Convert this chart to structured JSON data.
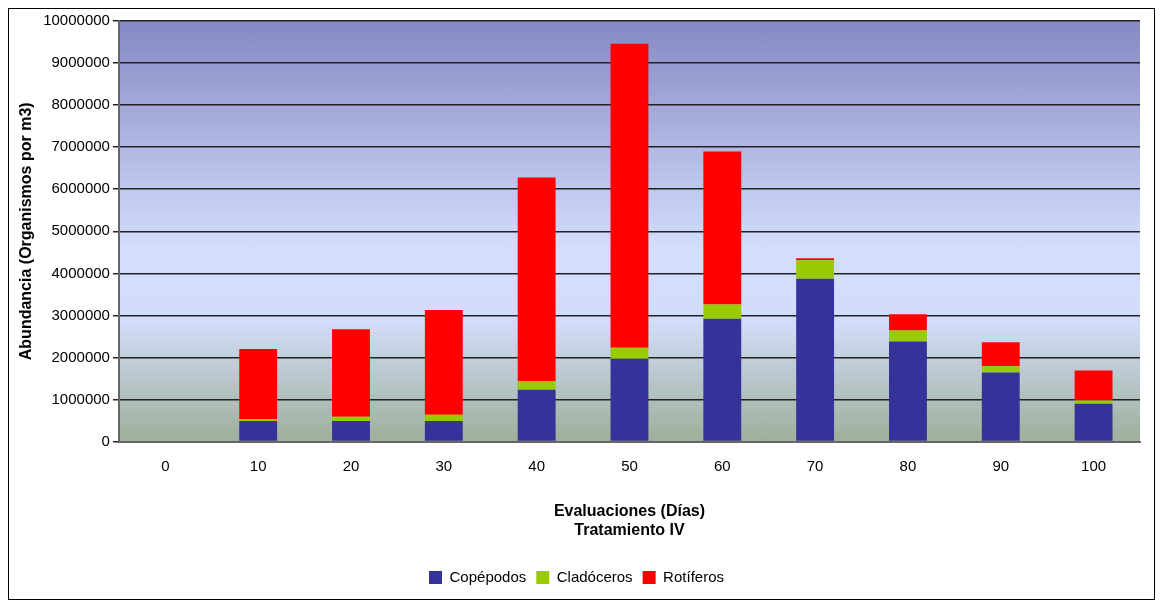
{
  "chart_data": {
    "type": "bar",
    "stacked": true,
    "xlabel": "Evaluaciones (Días)\nTratamiento IV",
    "ylabel": "Abundancia (Organismos por m3)",
    "categories": [
      "0",
      "10",
      "20",
      "30",
      "40",
      "50",
      "60",
      "70",
      "80",
      "90",
      "100"
    ],
    "series": [
      {
        "name": "Copépodos",
        "color": "#333399",
        "values": [
          0,
          490000,
          490000,
          490000,
          1230000,
          1970000,
          2920000,
          3870000,
          2380000,
          1640000,
          900000
        ]
      },
      {
        "name": "Cladóceros",
        "color": "#99cc00",
        "values": [
          0,
          50000,
          100000,
          150000,
          210000,
          260000,
          340000,
          440000,
          260000,
          150000,
          80000
        ]
      },
      {
        "name": "Rotíferos",
        "color": "#ff0000",
        "values": [
          0,
          1660000,
          2080000,
          2490000,
          4840000,
          7230000,
          3640000,
          50000,
          390000,
          570000,
          710000
        ]
      }
    ],
    "ylim": [
      0,
      10000000
    ],
    "yticks": [
      0,
      1000000,
      2000000,
      3000000,
      4000000,
      5000000,
      6000000,
      7000000,
      8000000,
      9000000,
      10000000
    ],
    "grid": "y",
    "legend": "bottom"
  }
}
